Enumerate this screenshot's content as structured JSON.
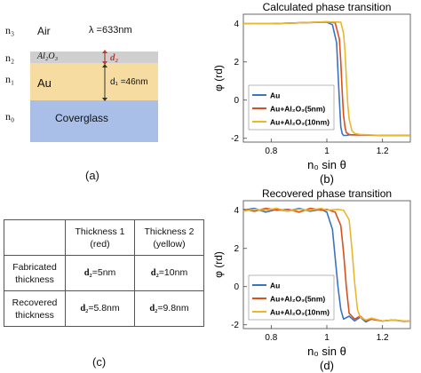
{
  "panel_a": {
    "layers": [
      {
        "index": "n₃",
        "medium": "Air",
        "color": "#ffffff"
      },
      {
        "index": "n₂",
        "medium": "Al₂O₃",
        "color": "#d0d0d0"
      },
      {
        "index": "n₁",
        "medium": "Au",
        "color": "#f6dca0"
      },
      {
        "index": "n₀",
        "medium": "Coverglass",
        "color": "#a9bfe8"
      }
    ],
    "wavelength": "λ =633nm",
    "d2_label": "d₂",
    "d1_label": "d₁ =46nm",
    "caption": "(a)"
  },
  "table": {
    "headers": [
      "",
      "Thickness 1\n(red)",
      "Thickness 2\n(yellow)"
    ],
    "rows": [
      {
        "label": "Fabricated\nthickness",
        "t1": "=5nm",
        "t2": "=10nm"
      },
      {
        "label": "Recovered\nthickness",
        "t1": "=5.8nm",
        "t2": "=9.8nm"
      }
    ],
    "d_symbol": "d₂",
    "caption": "(c)"
  },
  "colors": {
    "au": "#3a72c4",
    "au_al2o3_5": "#d8501e",
    "au_al2o3_10": "#eab72e"
  },
  "chart_data": [
    {
      "type": "line",
      "title": "Calculated phase transition",
      "xlabel": "n₀ sin θ",
      "ylabel": "φ (rd)",
      "xlim": [
        0.7,
        1.3
      ],
      "ylim": [
        -2.2,
        4.5
      ],
      "xticks": [
        "0.8",
        "1",
        "1.2"
      ],
      "yticks": [
        "-2",
        "0",
        "2",
        "4"
      ],
      "legend_position": "center",
      "caption": "(b)",
      "series": [
        {
          "name": "Au",
          "x": [
            0.7,
            0.8,
            0.9,
            1.0,
            1.02,
            1.035,
            1.04,
            1.045,
            1.05,
            1.055,
            1.06,
            1.07,
            1.08,
            1.1,
            1.2,
            1.3
          ],
          "y": [
            4.0,
            4.0,
            4.05,
            4.08,
            3.95,
            3.0,
            1.5,
            0.0,
            -1.4,
            -1.75,
            -1.85,
            -1.85,
            -1.82,
            -1.82,
            -1.85,
            -1.85
          ]
        },
        {
          "name": "Au+Al₂O₃(5nm)",
          "x": [
            0.7,
            0.8,
            0.9,
            1.0,
            1.03,
            1.045,
            1.05,
            1.055,
            1.06,
            1.065,
            1.07,
            1.08,
            1.09,
            1.1,
            1.2,
            1.3
          ],
          "y": [
            4.0,
            4.0,
            4.05,
            4.1,
            4.05,
            3.2,
            2.0,
            0.5,
            -0.8,
            -1.4,
            -1.7,
            -1.8,
            -1.82,
            -1.82,
            -1.85,
            -1.85
          ]
        },
        {
          "name": "Au+Al₂O₃(10nm)",
          "x": [
            0.7,
            0.8,
            0.9,
            1.0,
            1.05,
            1.06,
            1.065,
            1.07,
            1.075,
            1.08,
            1.09,
            1.1,
            1.12,
            1.2,
            1.3
          ],
          "y": [
            4.0,
            4.0,
            4.05,
            4.1,
            4.08,
            3.5,
            2.6,
            1.2,
            -0.2,
            -1.0,
            -1.6,
            -1.75,
            -1.8,
            -1.85,
            -1.85
          ]
        }
      ]
    },
    {
      "type": "line",
      "title": "Recovered phase transition",
      "xlabel": "n₀ sin θ",
      "ylabel": "φ (rd)",
      "xlim": [
        0.7,
        1.3
      ],
      "ylim": [
        -2.2,
        4.5
      ],
      "xticks": [
        "0.8",
        "1",
        "1.2"
      ],
      "yticks": [
        "-2",
        "0",
        "2",
        "4"
      ],
      "legend_position": "bottom-left",
      "caption": "(d)",
      "series": [
        {
          "name": "Au",
          "x": [
            0.7,
            0.74,
            0.78,
            0.82,
            0.86,
            0.9,
            0.94,
            0.98,
            1.0,
            1.02,
            1.03,
            1.04,
            1.05,
            1.06,
            1.08,
            1.1,
            1.12,
            1.14,
            1.16,
            1.2,
            1.24,
            1.28,
            1.3
          ],
          "y": [
            4.0,
            4.1,
            3.9,
            4.05,
            3.95,
            4.1,
            3.95,
            4.05,
            3.9,
            3.0,
            1.5,
            0.0,
            -1.2,
            -1.7,
            -1.55,
            -1.8,
            -1.6,
            -1.85,
            -1.7,
            -1.8,
            -1.75,
            -1.82,
            -1.8
          ]
        },
        {
          "name": "Au+Al₂O₃(5nm)",
          "x": [
            0.7,
            0.74,
            0.78,
            0.82,
            0.86,
            0.9,
            0.94,
            0.98,
            1.0,
            1.03,
            1.05,
            1.06,
            1.07,
            1.08,
            1.1,
            1.12,
            1.14,
            1.16,
            1.2,
            1.24,
            1.28,
            1.3
          ],
          "y": [
            4.05,
            3.95,
            4.1,
            4.0,
            4.05,
            3.9,
            4.1,
            4.0,
            4.05,
            3.9,
            3.2,
            1.8,
            0.0,
            -1.4,
            -1.7,
            -1.55,
            -1.8,
            -1.7,
            -1.8,
            -1.75,
            -1.82,
            -1.8
          ]
        },
        {
          "name": "Au+Al₂O₃(10nm)",
          "x": [
            0.7,
            0.74,
            0.78,
            0.82,
            0.86,
            0.9,
            0.94,
            0.98,
            1.0,
            1.04,
            1.06,
            1.08,
            1.09,
            1.1,
            1.11,
            1.12,
            1.14,
            1.16,
            1.2,
            1.24,
            1.28,
            1.3
          ],
          "y": [
            3.95,
            4.05,
            4.0,
            4.1,
            3.95,
            4.05,
            4.0,
            4.1,
            4.0,
            4.05,
            4.0,
            3.5,
            2.0,
            0.2,
            -1.2,
            -1.6,
            -1.75,
            -1.65,
            -1.8,
            -1.75,
            -1.8,
            -1.8
          ]
        }
      ]
    }
  ]
}
